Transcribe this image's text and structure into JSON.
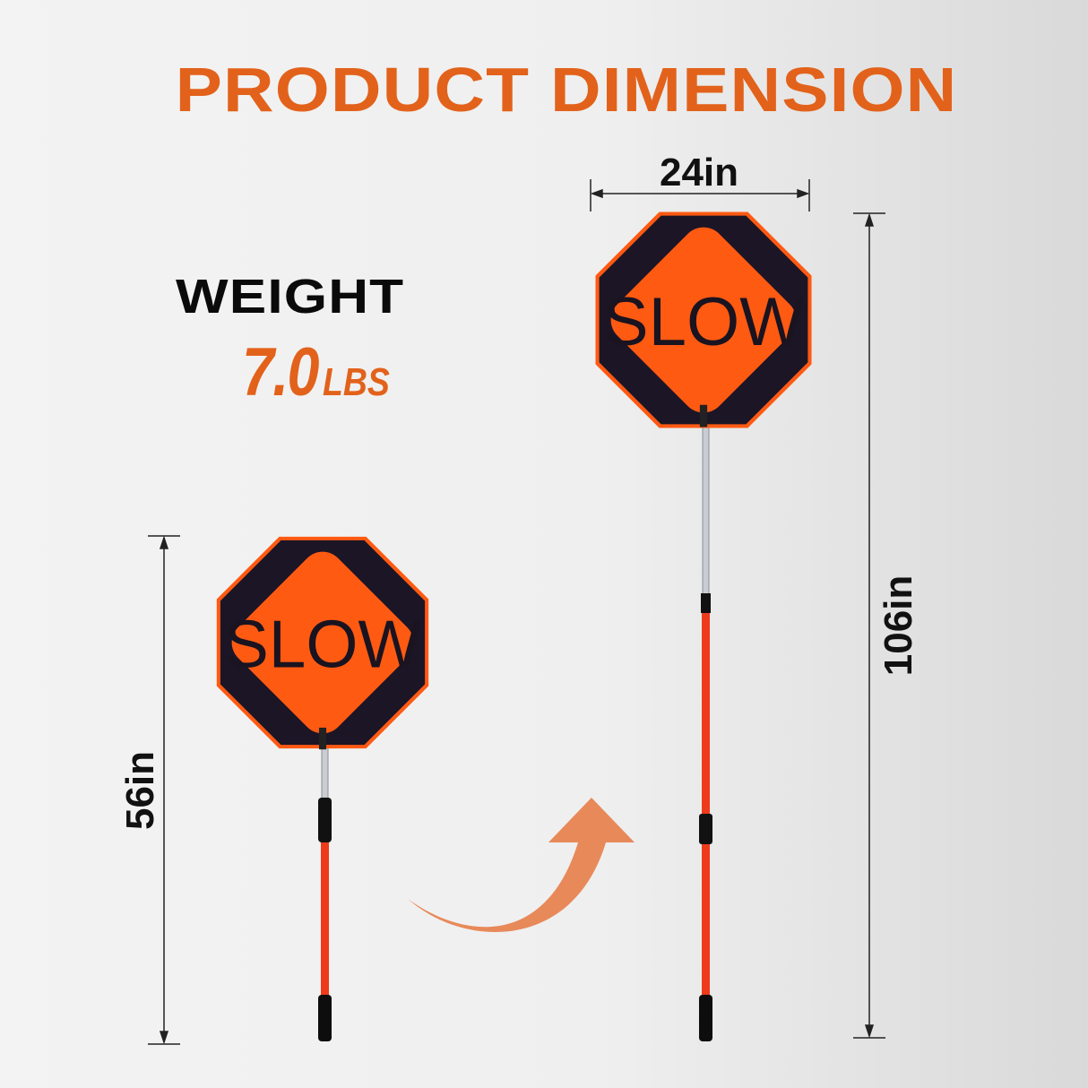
{
  "title": "PRODUCT DIMENSION",
  "weight": {
    "label": "WEIGHT",
    "value": "7.0",
    "unit": "LBS"
  },
  "dimensions": {
    "width": "24in",
    "extended_height": "106in",
    "collapsed_height": "56in"
  },
  "sign_text": "SLOW",
  "colors": {
    "accent": "#e2621b",
    "sign_orange": "#ff5a12",
    "sign_dark": "#1c1526",
    "arrow": "#e8895a"
  }
}
